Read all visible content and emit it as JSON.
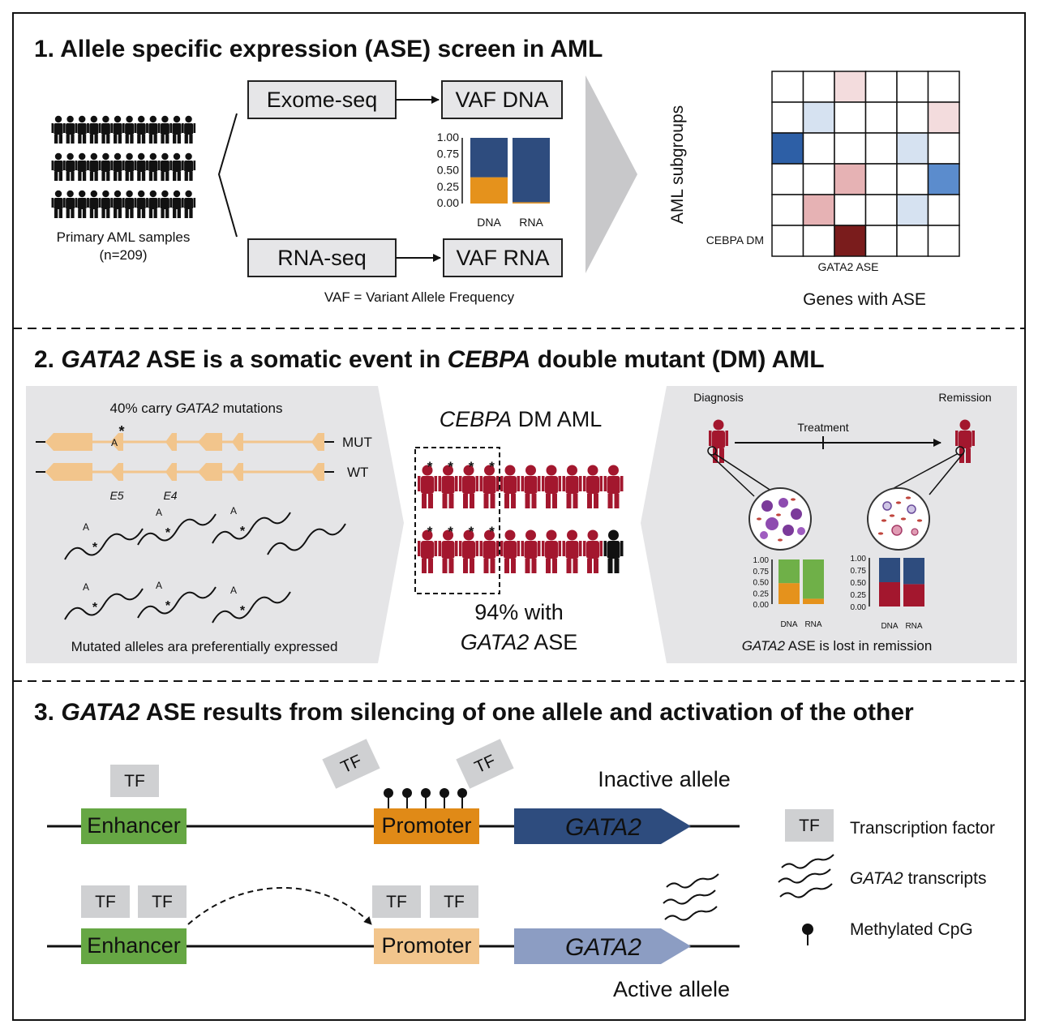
{
  "section1": {
    "number": "1.",
    "title": "Allele specific expression (ASE) screen in AML",
    "samples_label": "Primary AML samples",
    "samples_n": "(n=209)",
    "exome_label": "Exome-seq",
    "rna_label": "RNA-seq",
    "vaf_dna_label": "VAF DNA",
    "vaf_rna_label": "VAF RNA",
    "vaf_definition": "VAF = Variant Allele Frequency",
    "heatmap_ylabel": "AML subgroups",
    "heatmap_row_label": "CEBPA DM",
    "heatmap_col_label": "GATA2 ASE",
    "heatmap_xlabel": "Genes with ASE",
    "heatmap_colors": {
      "dark_red": "#7a1c1c",
      "light_red": "#e6b2b4",
      "pale_red": "#f3dcdd",
      "dark_blue": "#2d5fa6",
      "mid_blue": "#5b8ccd",
      "pale_blue": "#d6e2f1"
    }
  },
  "section2": {
    "number": "2.",
    "title_parts": [
      "GATA2",
      " ASE is a somatic event in ",
      "CEBPA",
      " double mutant (DM) AML"
    ],
    "carry_prefix": "40% carry ",
    "carry_gene": "GATA2",
    "carry_suffix": " mutations",
    "mut_label": "MUT",
    "wt_label": "WT",
    "exon5": "E5",
    "exon4": "E4",
    "allele_letter": "A",
    "mutated_caption": "Mutated alleles ara preferentially expressed",
    "cohort_gene": "CEBPA",
    "cohort_suffix": " DM AML",
    "pct_line1": "94% with",
    "pct_gene": "GATA2",
    "pct_suffix": " ASE",
    "diagnosis": "Diagnosis",
    "remission": "Remission",
    "treatment": "Treatment",
    "lost_gene": "GATA2",
    "lost_suffix": " ASE is lost in remission"
  },
  "section3": {
    "number": "3.",
    "title_gene": "GATA2",
    "title_suffix": " ASE results from silencing of one allele and activation of the other",
    "tf": "TF",
    "enhancer": "Enhancer",
    "promoter": "Promoter",
    "gene": "GATA2",
    "inactive": "Inactive allele",
    "active": "Active allele",
    "legend_tf": "Transcription factor",
    "legend_transcripts_gene": "GATA2",
    "legend_transcripts_suffix": " transcripts",
    "legend_cpg": "Methylated CpG",
    "colors": {
      "enhancer": "#66a744",
      "promoter_inactive": "#e08a17",
      "promoter_active": "#f2c58c",
      "gene_inactive": "#2e4c7e",
      "gene_active": "#8c9dc3"
    }
  },
  "chart_data": [
    {
      "type": "bar",
      "stacked": true,
      "categories": [
        "DNA",
        "RNA"
      ],
      "yticks": [
        "1.00",
        "0.75",
        "0.50",
        "0.25",
        "0.00"
      ],
      "ylim": [
        0,
        1
      ],
      "series": [
        {
          "color": "#e5921c",
          "values": [
            0.4,
            0.02
          ]
        },
        {
          "color": "#2e4c7e",
          "values": [
            0.6,
            0.98
          ]
        }
      ]
    },
    {
      "type": "bar",
      "stacked": true,
      "categories": [
        "DNA",
        "RNA"
      ],
      "yticks": [
        "1.00",
        "0.75",
        "0.50",
        "0.25",
        "0.00"
      ],
      "ylim": [
        0,
        1
      ],
      "series": [
        {
          "color": "#e5921c",
          "values": [
            0.47,
            0.12
          ]
        },
        {
          "color": "#6fb048",
          "values": [
            0.53,
            0.88
          ]
        }
      ]
    },
    {
      "type": "bar",
      "stacked": true,
      "categories": [
        "DNA",
        "RNA"
      ],
      "yticks": [
        "1.00",
        "0.75",
        "0.50",
        "0.25",
        "0.00"
      ],
      "ylim": [
        0,
        1
      ],
      "series": [
        {
          "color": "#a3172e",
          "values": [
            0.5,
            0.46
          ]
        },
        {
          "color": "#2e4c7e",
          "values": [
            0.5,
            0.54
          ]
        }
      ]
    }
  ]
}
